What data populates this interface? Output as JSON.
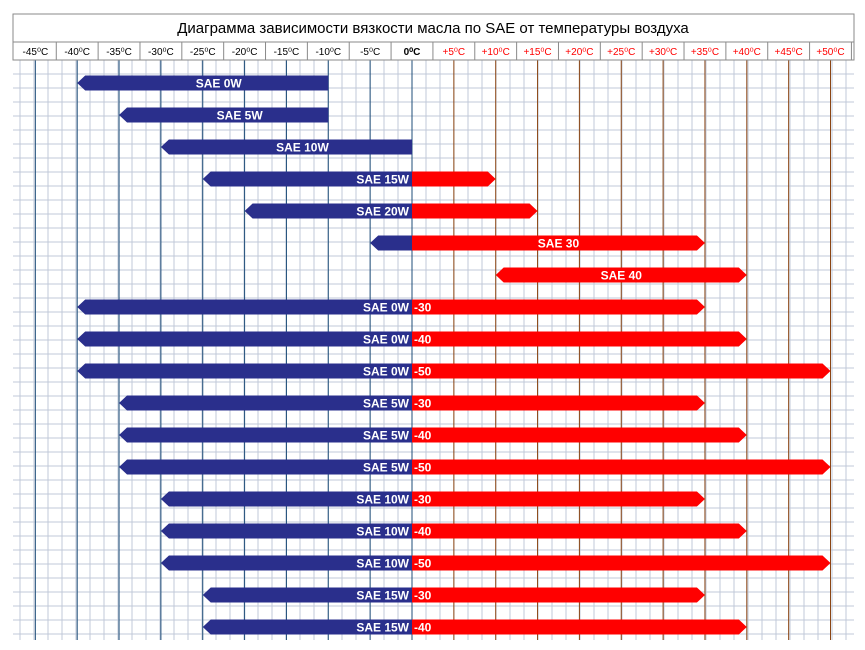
{
  "chart_data": {
    "type": "bar",
    "orientation": "horizontal-range",
    "title": "Диаграмма зависимости вязкости масла по SAE от температуры воздуха",
    "xlabel": "",
    "ylabel": "",
    "grid": true,
    "x_ticks": [
      {
        "value": -45,
        "label": "-45⁰C"
      },
      {
        "value": -40,
        "label": "-40⁰C"
      },
      {
        "value": -35,
        "label": "-35⁰C"
      },
      {
        "value": -30,
        "label": "-30⁰C"
      },
      {
        "value": -25,
        "label": "-25⁰C"
      },
      {
        "value": -20,
        "label": "-20⁰C"
      },
      {
        "value": -15,
        "label": "-15⁰C"
      },
      {
        "value": -10,
        "label": "-10⁰C"
      },
      {
        "value": -5,
        "label": "-5⁰C"
      },
      {
        "value": 0,
        "label": "0⁰C"
      },
      {
        "value": 5,
        "label": "+5⁰C"
      },
      {
        "value": 10,
        "label": "+10⁰C"
      },
      {
        "value": 15,
        "label": "+15⁰C"
      },
      {
        "value": 20,
        "label": "+20⁰C"
      },
      {
        "value": 25,
        "label": "+25⁰C"
      },
      {
        "value": 30,
        "label": "+30⁰C"
      },
      {
        "value": 35,
        "label": "+35⁰C"
      },
      {
        "value": 40,
        "label": "+40⁰C"
      },
      {
        "value": 45,
        "label": "+45⁰C"
      },
      {
        "value": 50,
        "label": "+50⁰C"
      }
    ],
    "colors": {
      "cold": "#2a2f8c",
      "hot": "#ff0000",
      "negative_tick": "#000000",
      "positive_tick": "#ff0000",
      "negative_vline": "#1f4e79",
      "positive_vline": "#8b4513",
      "grid": "#c0c8d8"
    },
    "bars": [
      {
        "cold_label": "SAE 0W",
        "hot_label": "",
        "min_temp": -40,
        "max_temp": -10
      },
      {
        "cold_label": "SAE 5W",
        "hot_label": "",
        "min_temp": -35,
        "max_temp": -10
      },
      {
        "cold_label": "SAE 10W",
        "hot_label": "",
        "min_temp": -30,
        "max_temp": 0
      },
      {
        "cold_label": "SAE 15W",
        "hot_label": "",
        "min_temp": -25,
        "max_temp": 10
      },
      {
        "cold_label": "SAE 20W",
        "hot_label": "",
        "min_temp": -20,
        "max_temp": 15
      },
      {
        "cold_label": "",
        "hot_label": "SAE 30",
        "min_temp": -5,
        "max_temp": 35
      },
      {
        "cold_label": "",
        "hot_label": "SAE 40",
        "min_temp": 10,
        "max_temp": 40
      },
      {
        "cold_label": "SAE 0W",
        "hot_label": "-30",
        "min_temp": -40,
        "max_temp": 35
      },
      {
        "cold_label": "SAE 0W",
        "hot_label": "-40",
        "min_temp": -40,
        "max_temp": 40
      },
      {
        "cold_label": "SAE 0W",
        "hot_label": "-50",
        "min_temp": -40,
        "max_temp": 50
      },
      {
        "cold_label": "SAE 5W",
        "hot_label": "-30",
        "min_temp": -35,
        "max_temp": 35
      },
      {
        "cold_label": "SAE 5W",
        "hot_label": "-40",
        "min_temp": -35,
        "max_temp": 40
      },
      {
        "cold_label": "SAE 5W",
        "hot_label": "-50",
        "min_temp": -35,
        "max_temp": 50
      },
      {
        "cold_label": "SAE 10W",
        "hot_label": "-30",
        "min_temp": -30,
        "max_temp": 35
      },
      {
        "cold_label": "SAE 10W",
        "hot_label": "-40",
        "min_temp": -30,
        "max_temp": 40
      },
      {
        "cold_label": "SAE 10W",
        "hot_label": "-50",
        "min_temp": -30,
        "max_temp": 50
      },
      {
        "cold_label": "SAE 15W",
        "hot_label": "-30",
        "min_temp": -25,
        "max_temp": 35
      },
      {
        "cold_label": "SAE 15W",
        "hot_label": "-40",
        "min_temp": -25,
        "max_temp": 40
      }
    ]
  }
}
